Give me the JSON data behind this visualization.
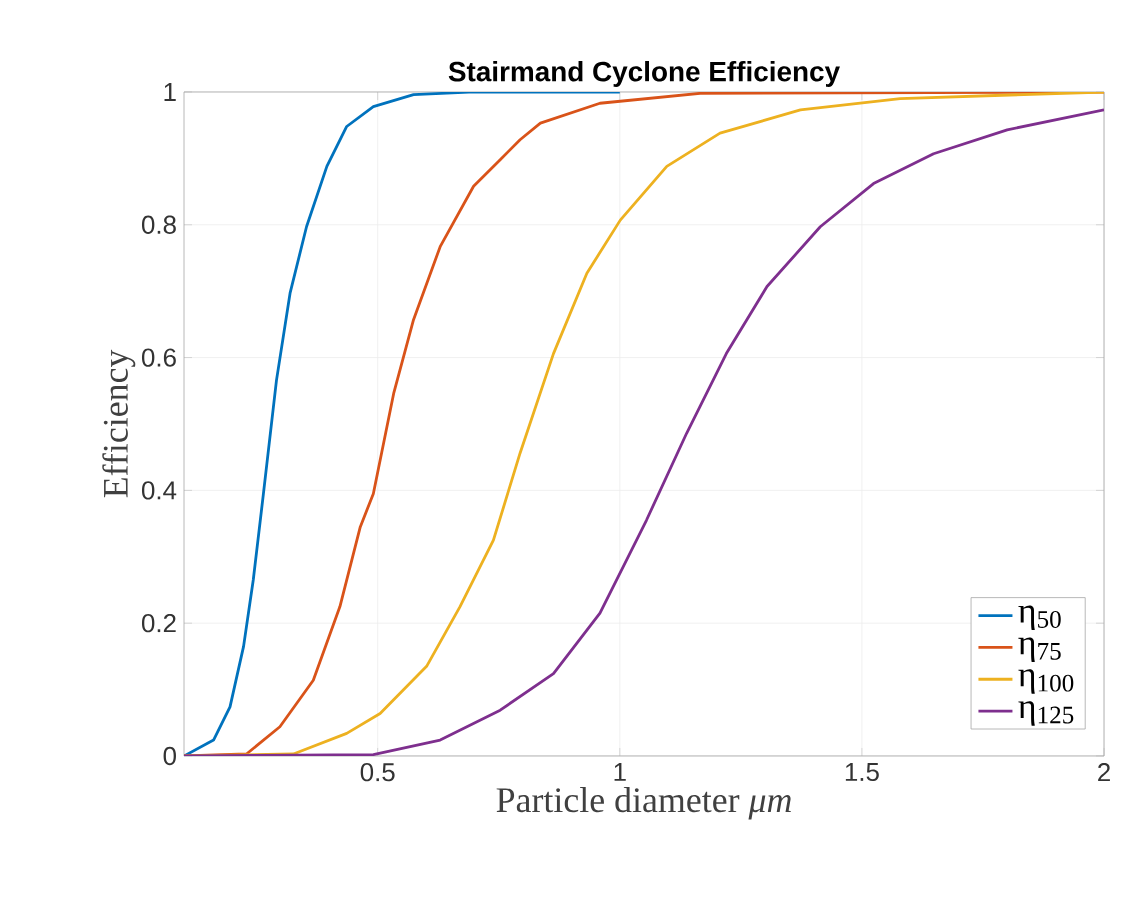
{
  "chart_data": {
    "type": "line",
    "title": "Stairmand Cyclone Efficiency",
    "xlabel": "Particle diameter *μm*",
    "ylabel": "Efficiency",
    "xlim": [
      0.1,
      2
    ],
    "ylim": [
      0,
      1
    ],
    "xticks": [
      0.5,
      1,
      1.5,
      2
    ],
    "yticks": [
      0,
      0.2,
      0.4,
      0.6,
      0.8,
      1
    ],
    "grid": true,
    "legend": "bottom right",
    "marker": "none",
    "line_style": "solid",
    "series": [
      {
        "name": "η$_{50}$",
        "color": "#0072bd",
        "x": [
          0.1,
          0.161,
          0.195,
          0.223,
          0.243,
          0.264,
          0.291,
          0.319,
          0.353,
          0.395,
          0.436,
          0.491,
          0.574,
          0.7,
          1.0
        ],
        "values": [
          0,
          0.024,
          0.074,
          0.165,
          0.265,
          0.395,
          0.566,
          0.697,
          0.797,
          0.888,
          0.948,
          0.978,
          0.996,
          1.0,
          1.0
        ]
      },
      {
        "name": "η$_{75}$",
        "color": "#d95319",
        "x": [
          0.1,
          0.229,
          0.298,
          0.367,
          0.422,
          0.464,
          0.491,
          0.533,
          0.574,
          0.629,
          0.698,
          0.753,
          0.794,
          0.836,
          0.959,
          1.166,
          2.0
        ],
        "values": [
          0,
          0.003,
          0.044,
          0.114,
          0.225,
          0.345,
          0.395,
          0.546,
          0.657,
          0.767,
          0.858,
          0.898,
          0.928,
          0.953,
          0.983,
          0.998,
          1.0
        ]
      },
      {
        "name": "η$_{100}$",
        "color": "#edb120",
        "x": [
          0.1,
          0.326,
          0.436,
          0.505,
          0.601,
          0.67,
          0.739,
          0.794,
          0.863,
          0.932,
          1.001,
          1.097,
          1.207,
          1.373,
          1.579,
          2.0
        ],
        "values": [
          0,
          0.003,
          0.034,
          0.064,
          0.135,
          0.225,
          0.325,
          0.456,
          0.606,
          0.727,
          0.807,
          0.888,
          0.938,
          0.973,
          0.99,
          1.0
        ]
      },
      {
        "name": "η$_{125}$",
        "color": "#7e2f8e",
        "x": [
          0.1,
          0.491,
          0.629,
          0.753,
          0.863,
          0.959,
          1.055,
          1.138,
          1.22,
          1.304,
          1.414,
          1.524,
          1.648,
          1.8,
          2.0
        ],
        "values": [
          0,
          0.002,
          0.024,
          0.069,
          0.124,
          0.215,
          0.355,
          0.486,
          0.606,
          0.707,
          0.797,
          0.862,
          0.907,
          0.943,
          0.973
        ]
      }
    ]
  }
}
